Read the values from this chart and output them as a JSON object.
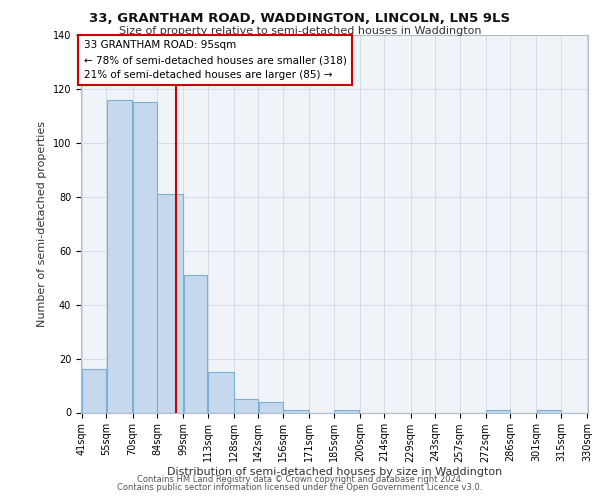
{
  "title_line1": "33, GRANTHAM ROAD, WADDINGTON, LINCOLN, LN5 9LS",
  "title_line2": "Size of property relative to semi-detached houses in Waddington",
  "xlabel": "Distribution of semi-detached houses by size in Waddington",
  "ylabel": "Number of semi-detached properties",
  "footer_line1": "Contains HM Land Registry data © Crown copyright and database right 2024.",
  "footer_line2": "Contains public sector information licensed under the Open Government Licence v3.0.",
  "annotation_line1": "33 GRANTHAM ROAD: 95sqm",
  "annotation_line2": "← 78% of semi-detached houses are smaller (318)",
  "annotation_line3": "21% of semi-detached houses are larger (85) →",
  "property_size": 95,
  "bar_lefts": [
    41,
    55,
    70,
    84,
    99,
    113,
    128,
    142,
    156,
    171,
    185,
    200,
    214,
    229,
    243,
    257,
    272,
    286,
    301,
    315
  ],
  "bar_rights": [
    55,
    70,
    84,
    99,
    113,
    128,
    142,
    156,
    171,
    185,
    200,
    214,
    229,
    243,
    257,
    272,
    286,
    301,
    315,
    330
  ],
  "bar_heights": [
    16,
    116,
    115,
    81,
    51,
    15,
    5,
    4,
    1,
    0,
    1,
    0,
    0,
    0,
    0,
    0,
    1,
    0,
    1,
    0
  ],
  "tick_labels": [
    "41sqm",
    "55sqm",
    "70sqm",
    "84sqm",
    "99sqm",
    "113sqm",
    "128sqm",
    "142sqm",
    "156sqm",
    "171sqm",
    "185sqm",
    "200sqm",
    "214sqm",
    "229sqm",
    "243sqm",
    "257sqm",
    "272sqm",
    "286sqm",
    "301sqm",
    "315sqm",
    "330sqm"
  ],
  "bar_facecolor": "#c6d9ec",
  "bar_edgecolor": "#7bafd4",
  "vline_color": "#cc0000",
  "annotation_box_edge": "#cc0000",
  "annotation_box_face": "#ffffff",
  "bg_color": "#f0f4f8",
  "grid_color": "#d0d8e0",
  "ylim": [
    0,
    140
  ],
  "yticks": [
    0,
    20,
    40,
    60,
    80,
    100,
    120,
    140
  ],
  "title_fontsize": 9.5,
  "subtitle_fontsize": 8,
  "axis_label_fontsize": 8,
  "tick_fontsize": 7,
  "footer_fontsize": 6,
  "annotation_fontsize": 7.5
}
